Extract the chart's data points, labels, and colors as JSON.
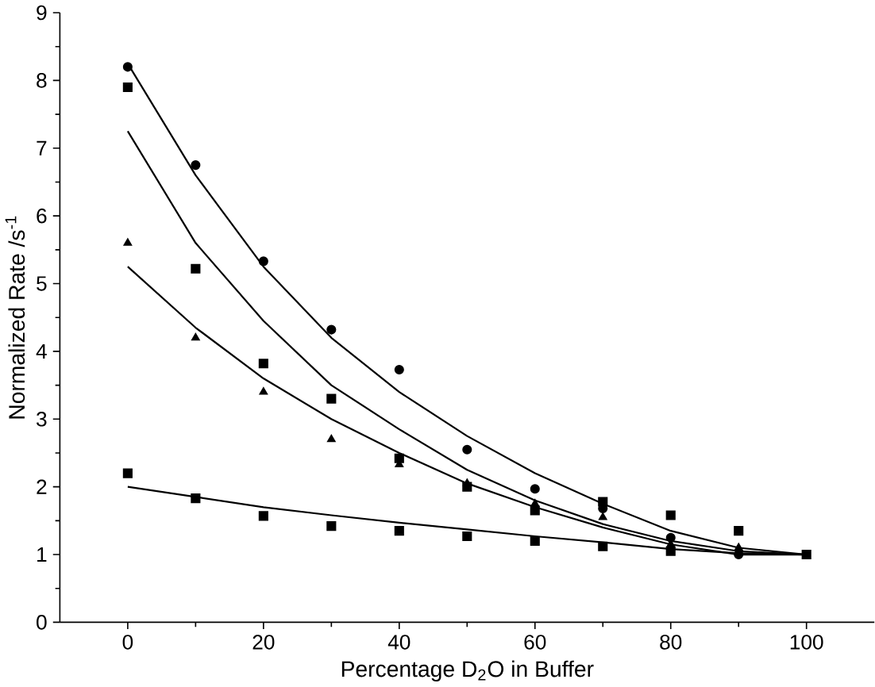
{
  "chart_data": {
    "type": "scatter",
    "xlabel": "Percentage D$_{2}$O in Buffer",
    "ylabel": "Normalized Rate /s$^{-1}$",
    "xlim": [
      -10,
      110
    ],
    "ylim": [
      0,
      9
    ],
    "xticks": [
      0,
      20,
      40,
      60,
      80,
      100
    ],
    "yticks": [
      0,
      1,
      2,
      3,
      4,
      5,
      6,
      7,
      8,
      9
    ],
    "grid": false,
    "x": [
      0,
      10,
      20,
      30,
      40,
      50,
      60,
      70,
      80,
      90,
      100
    ],
    "series": [
      {
        "marker": "circle",
        "color": "#000000",
        "values": [
          8.2,
          6.75,
          5.33,
          4.32,
          3.73,
          2.55,
          1.97,
          1.68,
          1.25,
          1.0,
          null
        ]
      },
      {
        "marker": "square",
        "color": "#000000",
        "values": [
          7.9,
          5.22,
          3.82,
          3.3,
          2.42,
          2.0,
          1.65,
          1.78,
          1.58,
          1.35,
          null
        ]
      },
      {
        "marker": "triangle",
        "color": "#000000",
        "values": [
          5.6,
          4.2,
          3.4,
          2.7,
          2.33,
          2.05,
          1.75,
          1.55,
          1.15,
          1.1,
          null
        ]
      },
      {
        "marker": "square",
        "color": "#000000",
        "values": [
          2.2,
          1.83,
          1.57,
          1.42,
          1.35,
          1.27,
          1.2,
          1.12,
          1.05,
          null,
          1.0
        ]
      },
      {
        "type": "line",
        "marker": "none",
        "line_style": "solid",
        "color": "#000000",
        "values": [
          8.25,
          6.6,
          5.25,
          4.2,
          3.4,
          2.75,
          2.2,
          1.75,
          1.35,
          1.1,
          1.0
        ]
      },
      {
        "type": "line",
        "marker": "none",
        "line_style": "solid",
        "color": "#000000",
        "values": [
          7.25,
          5.6,
          4.45,
          3.5,
          2.85,
          2.25,
          1.8,
          1.45,
          1.2,
          1.05,
          1.0
        ]
      },
      {
        "type": "line",
        "marker": "none",
        "line_style": "solid",
        "color": "#000000",
        "values": [
          5.25,
          4.35,
          3.6,
          3.0,
          2.5,
          2.05,
          1.7,
          1.4,
          1.15,
          1.0,
          1.0
        ]
      },
      {
        "type": "line",
        "marker": "none",
        "line_style": "solid",
        "color": "#000000",
        "values": [
          2.0,
          1.85,
          1.7,
          1.58,
          1.47,
          1.37,
          1.27,
          1.18,
          1.08,
          1.02,
          1.0
        ]
      }
    ]
  }
}
